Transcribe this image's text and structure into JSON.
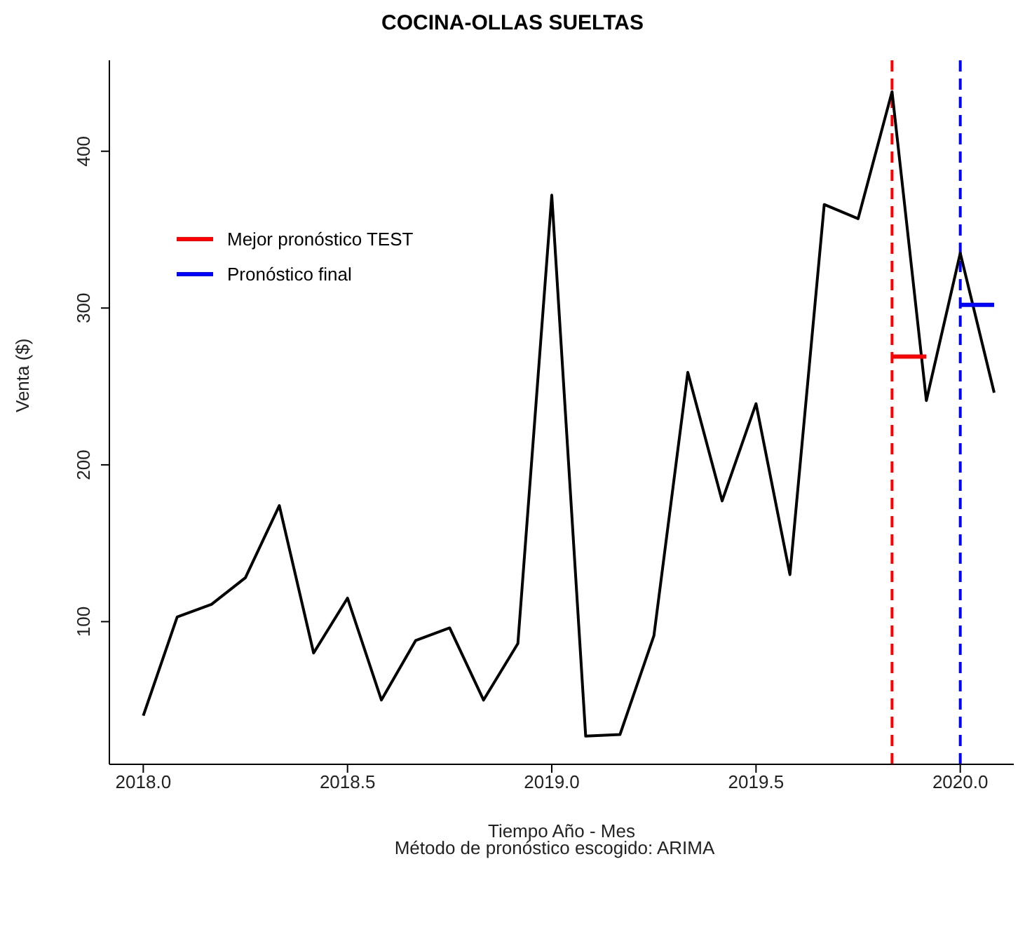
{
  "chart_data": {
    "type": "line",
    "title": "COCINA-OLLAS SUELTAS",
    "xlabel": "Tiempo Año - Mes",
    "ylabel": "Venta ($)",
    "annotations": [
      "Método de pronóstico escogido: ARIMA"
    ],
    "x": [
      2018.0,
      2018.083,
      2018.167,
      2018.25,
      2018.333,
      2018.417,
      2018.5,
      2018.583,
      2018.667,
      2018.75,
      2018.833,
      2018.917,
      2019.0,
      2019.083,
      2019.167,
      2019.25,
      2019.333,
      2019.417,
      2019.5,
      2019.583,
      2019.667,
      2019.75,
      2019.833,
      2019.917,
      2020.0,
      2020.083
    ],
    "series": [
      {
        "color": "#000000",
        "values": [
          40,
          103,
          111,
          128,
          174,
          80,
          115,
          50,
          88,
          96,
          50,
          86,
          372,
          27,
          28,
          91,
          259,
          177,
          239,
          130,
          366,
          357,
          438,
          241,
          335,
          246
        ]
      },
      {
        "name": "Mejor pronóstico TEST",
        "color": "#ff0000",
        "x": [
          2019.833,
          2019.917
        ],
        "values": [
          269,
          269
        ]
      },
      {
        "name": "Pronóstico final",
        "color": "#0000ff",
        "x": [
          2020.0,
          2020.083
        ],
        "values": [
          302,
          302
        ]
      }
    ],
    "ref_lines": [
      {
        "axis": "x",
        "value": 2019.833,
        "color": "#ff0000",
        "line_style": "dashed"
      },
      {
        "axis": "x",
        "value": 2020.0,
        "color": "#0000ff",
        "line_style": "dashed"
      }
    ],
    "xlim": [
      2017.917,
      2020.131
    ],
    "ylim": [
      9,
      458
    ],
    "xticks": [
      {
        "value": 2018.0,
        "label": "2018.0"
      },
      {
        "value": 2018.5,
        "label": "2018.5"
      },
      {
        "value": 2019.0,
        "label": "2019.0"
      },
      {
        "value": 2019.5,
        "label": "2019.5"
      },
      {
        "value": 2020.0,
        "label": "2020.0"
      }
    ],
    "yticks": [
      100,
      200,
      300,
      400
    ],
    "legend": "top left",
    "marker": "none",
    "line_style": "solid",
    "grid": false
  }
}
